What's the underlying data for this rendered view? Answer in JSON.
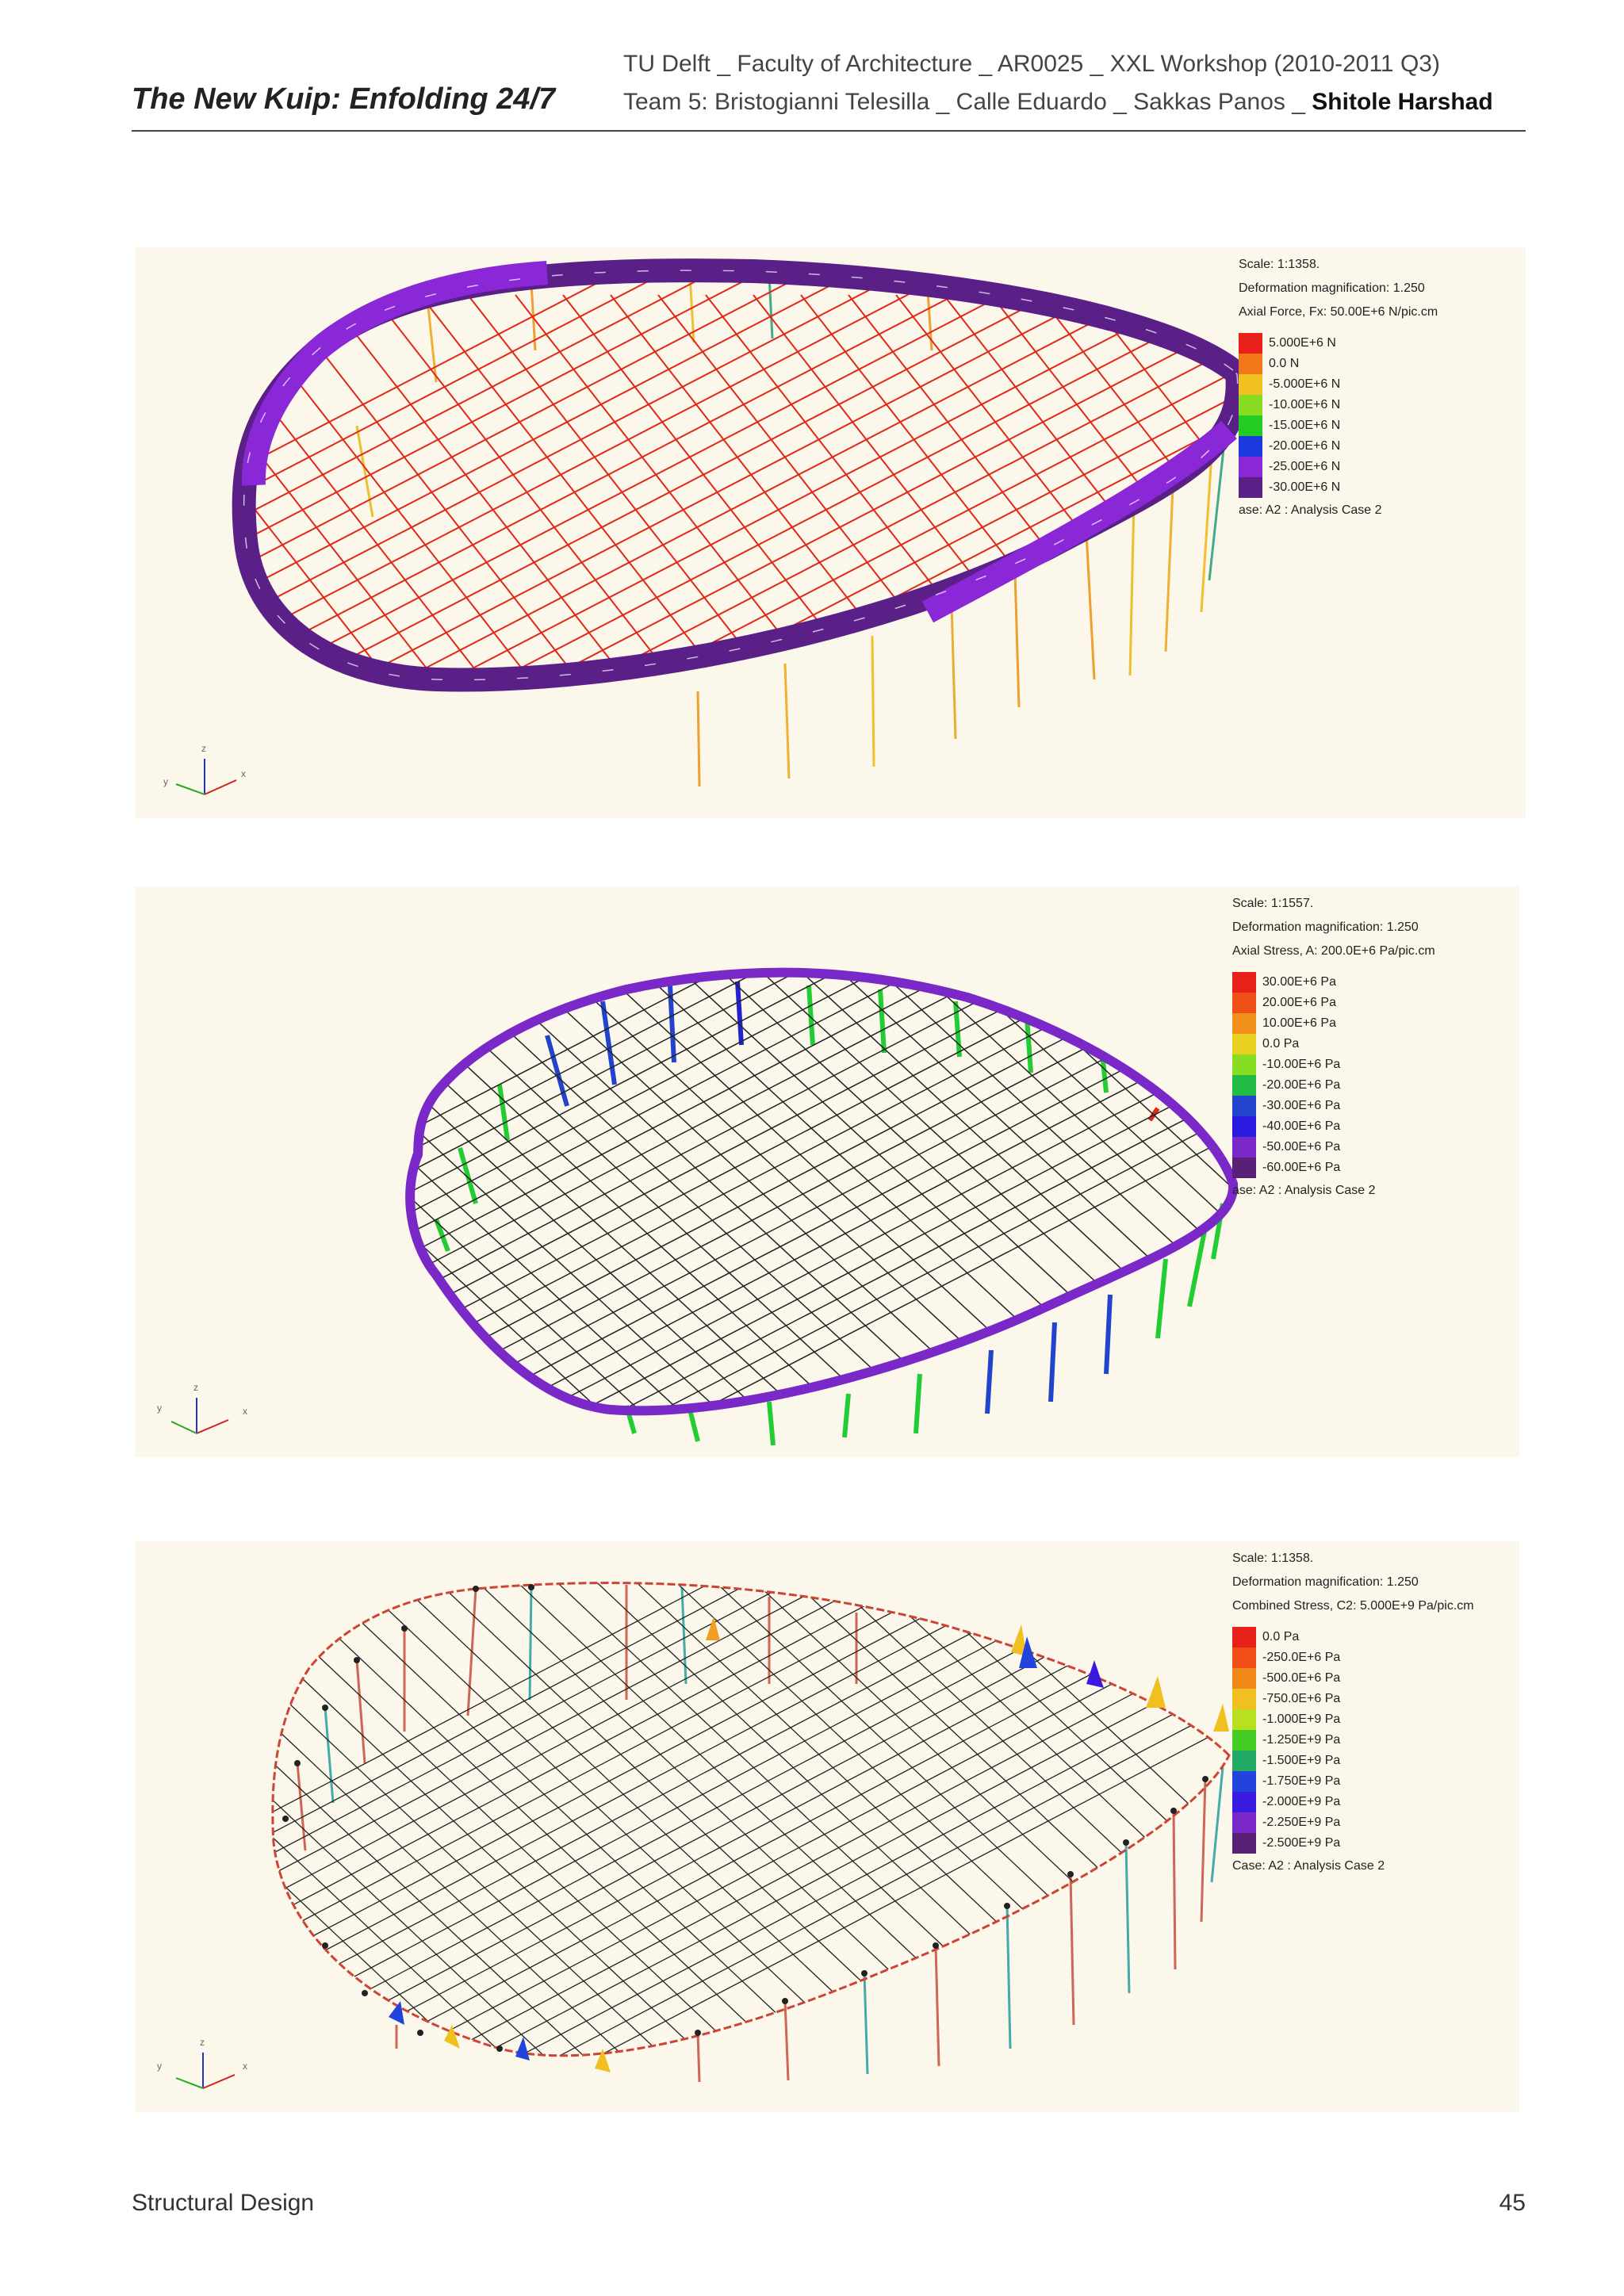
{
  "header": {
    "title": "The New Kuip: Enfolding 24/7",
    "line1": "TU Delft _ Faculty of Architecture _ AR0025 _ XXL Workshop  (2010-2011 Q3)",
    "line2_prefix": "Team 5: Bristogianni Telesilla _ Calle Eduardo _ Sakkas Panos _ ",
    "line2_bold": "Shitole Harshad"
  },
  "figures": [
    {
      "scale": "Scale: 1:1358.",
      "deformation": "Deformation magnification: 1.250",
      "quantity": "Axial Force, Fx: 50.00E+6 N/pic.cm",
      "legend": [
        {
          "label": "5.000E+6 N",
          "color": "#e8201a"
        },
        {
          "label": "0.0 N",
          "color": "#f07818"
        },
        {
          "label": "-5.000E+6 N",
          "color": "#f0c020"
        },
        {
          "label": "-10.00E+6 N",
          "color": "#88dd22"
        },
        {
          "label": "-15.00E+6 N",
          "color": "#22cc22"
        },
        {
          "label": "-20.00E+6 N",
          "color": "#1a3ae0"
        },
        {
          "label": "-25.00E+6 N",
          "color": "#8a28d8"
        },
        {
          "label": "-30.00E+6 N",
          "color": "#5a2088"
        }
      ],
      "case": "ase: A2 : Analysis Case 2",
      "axes": {
        "z": "z",
        "y": "y",
        "x": "x"
      }
    },
    {
      "scale": "Scale: 1:1557.",
      "deformation": "Deformation magnification: 1.250",
      "quantity": "Axial Stress, A: 200.0E+6 Pa/pic.cm",
      "legend": [
        {
          "label": "30.00E+6 Pa",
          "color": "#e8201a"
        },
        {
          "label": "20.00E+6 Pa",
          "color": "#f05018"
        },
        {
          "label": "10.00E+6 Pa",
          "color": "#f09018"
        },
        {
          "label": "0.0 Pa",
          "color": "#e8d020"
        },
        {
          "label": "-10.00E+6 Pa",
          "color": "#88dd22"
        },
        {
          "label": "-20.00E+6 Pa",
          "color": "#22bb44"
        },
        {
          "label": "-30.00E+6 Pa",
          "color": "#2244cc"
        },
        {
          "label": "-40.00E+6 Pa",
          "color": "#2a1ae0"
        },
        {
          "label": "-50.00E+6 Pa",
          "color": "#7a28c8"
        },
        {
          "label": "-60.00E+6 Pa",
          "color": "#5a2078"
        }
      ],
      "case": "ase: A2 : Analysis Case 2",
      "axes": {
        "z": "z",
        "y": "y",
        "x": "x"
      }
    },
    {
      "scale": "Scale: 1:1358.",
      "deformation": "Deformation magnification: 1.250",
      "quantity": "Combined Stress, C2: 5.000E+9 Pa/pic.cm",
      "legend": [
        {
          "label": "0.0 Pa",
          "color": "#e8201a"
        },
        {
          "label": "-250.0E+6 Pa",
          "color": "#f05018"
        },
        {
          "label": "-500.0E+6 Pa",
          "color": "#f08818"
        },
        {
          "label": "-750.0E+6 Pa",
          "color": "#f0c020"
        },
        {
          "label": "-1.000E+9 Pa",
          "color": "#b8e020"
        },
        {
          "label": "-1.250E+9 Pa",
          "color": "#44cc22"
        },
        {
          "label": "-1.500E+9 Pa",
          "color": "#22aa66"
        },
        {
          "label": "-1.750E+9 Pa",
          "color": "#2244dd"
        },
        {
          "label": "-2.000E+9 Pa",
          "color": "#3a1ae0"
        },
        {
          "label": "-2.250E+9 Pa",
          "color": "#7a28c8"
        },
        {
          "label": "-2.500E+9 Pa",
          "color": "#5a2078"
        }
      ],
      "case": "Case: A2 : Analysis Case 2",
      "axes": {
        "z": "z",
        "y": "y",
        "x": "x"
      }
    }
  ],
  "footer": {
    "section": "Structural Design",
    "page": "45"
  }
}
